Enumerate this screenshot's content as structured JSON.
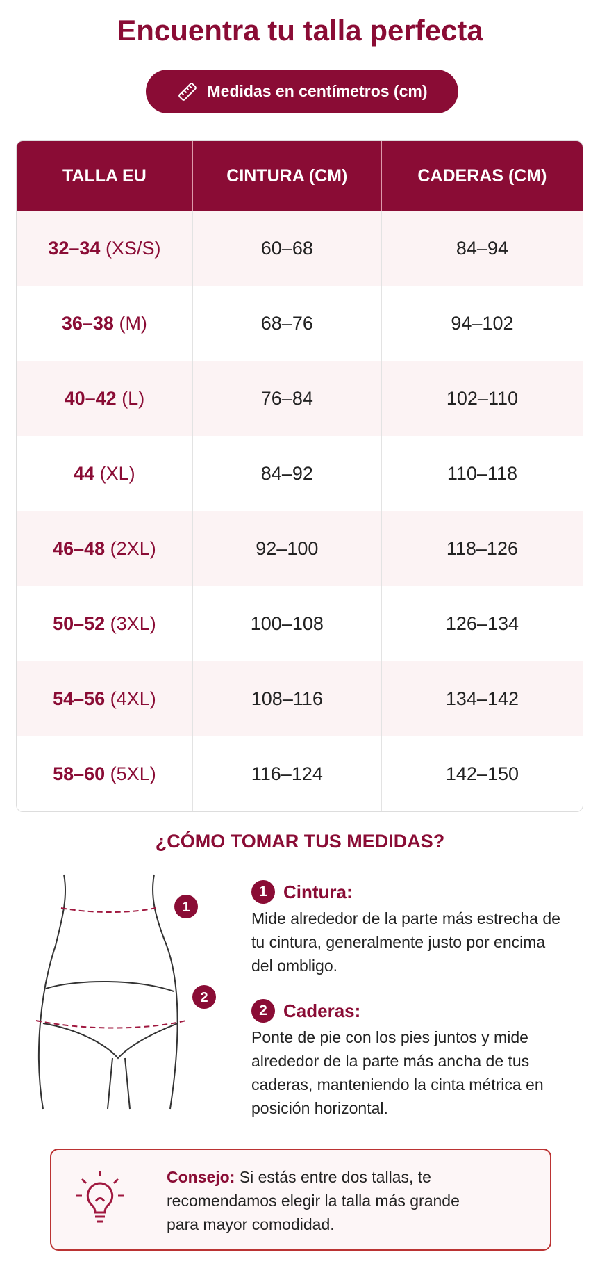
{
  "header": {
    "title": "Encuentra tu talla perfecta",
    "badge": "Medidas en centímetros (cm)"
  },
  "table": {
    "columns": [
      "TALLA EU",
      "CINTURA (CM)",
      "CADERAS (CM)"
    ],
    "rows": [
      [
        "32–34",
        "(XS/S)",
        "60–68",
        "84–94"
      ],
      [
        "36–38",
        "(M)",
        "68–76",
        "94–102"
      ],
      [
        "40–42",
        "(L)",
        "76–84",
        "102–110"
      ],
      [
        "44",
        "(XL)",
        "84–92",
        "110–118"
      ],
      [
        "46–48",
        "(2XL)",
        "92–100",
        "118–126"
      ],
      [
        "50–52",
        "(3XL)",
        "100–108",
        "126–134"
      ],
      [
        "54–56",
        "(4XL)",
        "108–116",
        "134–142"
      ],
      [
        "58–60",
        "(5XL)",
        "116–124",
        "142–150"
      ]
    ]
  },
  "guide": {
    "title": "¿CÓMO TOMAR TUS MEDIDAS?",
    "steps": [
      {
        "number": "1",
        "title": "Cintura:",
        "text": "Mide alrededor de la parte más estrecha de tu cintura, generalmente justo por encima del ombligo."
      },
      {
        "number": "2",
        "title": "Caderas:",
        "text": "Ponte de pie con los pies juntos y mide alrededor de la parte más ancha de tus caderas, manteniendo la cinta métrica en posición horizontal."
      }
    ]
  },
  "tip": {
    "label": "Consejo:",
    "text": "Si estás entre dos tallas, te recomendamos elegir la talla más grande para mayor comodidad."
  }
}
